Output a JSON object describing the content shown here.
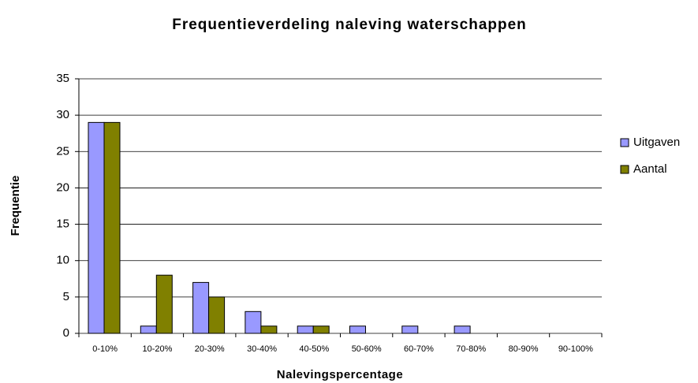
{
  "chart_data": {
    "type": "bar",
    "title": "Frequentieverdeling naleving waterschappen",
    "x_label": "Nalevingspercentage",
    "y_label": "Frequentie",
    "categories": [
      "0-10%",
      "10-20%",
      "20-30%",
      "30-40%",
      "40-50%",
      "50-60%",
      "60-70%",
      "70-80%",
      "80-90%",
      "90-100%"
    ],
    "series": [
      {
        "name": "Uitgaven",
        "color": "#9999ff",
        "values": [
          29,
          1,
          7,
          3,
          1,
          1,
          1,
          1,
          0,
          0
        ]
      },
      {
        "name": "Aantal",
        "color": "#808000",
        "values": [
          29,
          8,
          5,
          1,
          1,
          0,
          0,
          0,
          0,
          0
        ]
      }
    ],
    "ylim": [
      0,
      35
    ],
    "yticks": [
      0,
      5,
      10,
      15,
      20,
      25,
      30,
      35
    ],
    "grid": true,
    "legend": "right"
  }
}
